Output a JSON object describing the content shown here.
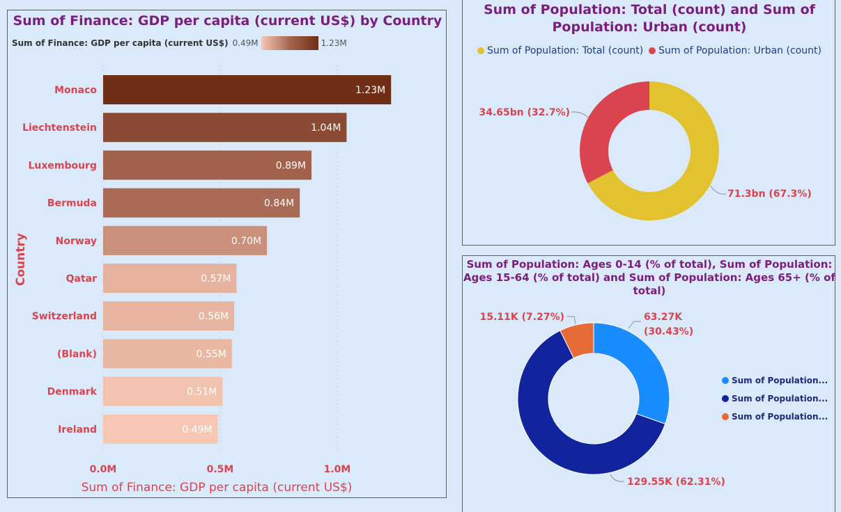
{
  "bar_panel": {
    "title": "Sum of Finance: GDP per capita (current US$) by Country",
    "color_scale": {
      "label": "Sum of Finance: GDP per capita (current US$)",
      "min": "0.49M",
      "max": "1.23M"
    },
    "xlabel": "Sum of Finance: GDP per capita (current US$)",
    "ylabel": "Country",
    "x_ticks": [
      "0.0M",
      "0.5M",
      "1.0M"
    ]
  },
  "donut1_panel": {
    "title": "Sum of Population: Total (count) and Sum of Population: Urban (count)",
    "legend": [
      "Sum of Population: Total (count)",
      "Sum of Population: Urban (count)"
    ]
  },
  "donut2_panel": {
    "title": "Sum of Population: Ages 0-14 (% of total), Sum of Population: Ages 15-64 (% of total) and Sum of Population: Ages 65+ (% of total)",
    "legend": [
      "Sum of Population...",
      "Sum of Population...",
      "Sum of Population..."
    ]
  },
  "chart_data": [
    {
      "type": "bar",
      "orientation": "horizontal",
      "title": "Sum of Finance: GDP per capita (current US$) by Country",
      "xlabel": "Sum of Finance: GDP per capita (current US$)",
      "ylabel": "Country",
      "categories": [
        "Monaco",
        "Liechtenstein",
        "Luxembourg",
        "Bermuda",
        "Norway",
        "Qatar",
        "Switzerland",
        "(Blank)",
        "Denmark",
        "Ireland"
      ],
      "values": [
        1.23,
        1.04,
        0.89,
        0.84,
        0.7,
        0.57,
        0.56,
        0.55,
        0.51,
        0.49
      ],
      "labels": [
        "1.23M",
        "1.04M",
        "0.89M",
        "0.84M",
        "0.70M",
        "0.57M",
        "0.56M",
        "0.55M",
        "0.51M",
        "0.49M"
      ],
      "unit": "M",
      "xlim": [
        0,
        1.3
      ],
      "grid": true,
      "color_scale": {
        "min": "#f6c8b3",
        "mid": "#a66550",
        "max": "#6f2e15"
      }
    },
    {
      "type": "pie",
      "donut": true,
      "title": "Sum of Population: Total (count) and Sum of Population: Urban (count)",
      "series": [
        {
          "name": "Sum of Population: Total (count)",
          "value": 71.3,
          "percent": 67.3,
          "label": "71.3bn (67.3%)",
          "color": "#e3c22f"
        },
        {
          "name": "Sum of Population: Urban (count)",
          "value": 34.65,
          "percent": 32.7,
          "label": "34.65bn (32.7%)",
          "color": "#d9444f"
        }
      ],
      "legend_position": "top"
    },
    {
      "type": "pie",
      "donut": true,
      "title": "Sum of Population: Ages 0-14 (% of total), Sum of Population: Ages 15-64 (% of total) and Sum of Population: Ages 65+ (% of total)",
      "series": [
        {
          "name": "Sum of Population...",
          "value": 63.27,
          "percent": 30.43,
          "label_line1": "63.27K",
          "label_line2": "(30.43%)",
          "color": "#198cff"
        },
        {
          "name": "Sum of Population...",
          "value": 129.55,
          "percent": 62.31,
          "label": "129.55K (62.31%)",
          "color": "#12239e"
        },
        {
          "name": "Sum of Population...",
          "value": 15.11,
          "percent": 7.27,
          "label": "15.11K (7.27%)",
          "color": "#e66c37"
        }
      ],
      "legend_position": "right"
    }
  ]
}
